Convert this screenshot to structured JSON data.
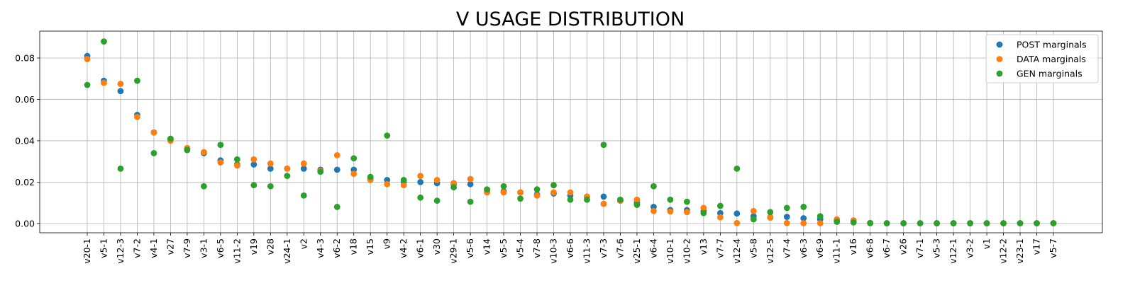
{
  "chart_data": {
    "type": "scatter",
    "title": "V USAGE DISTRIBUTION",
    "xlabel": "",
    "ylabel": "",
    "ylim": [
      -0.0045,
      0.093
    ],
    "yticks": [
      "0.00",
      "0.02",
      "0.04",
      "0.06",
      "0.08"
    ],
    "grid": true,
    "legend_position": "top-right",
    "categories": [
      "v20-1",
      "v5-1",
      "v12-3",
      "v7-2",
      "v4-1",
      "v27",
      "v7-9",
      "v3-1",
      "v6-5",
      "v11-2",
      "v19",
      "v28",
      "v24-1",
      "v2",
      "v4-3",
      "v6-2",
      "v18",
      "v15",
      "v9",
      "v4-2",
      "v6-1",
      "v30",
      "v29-1",
      "v5-6",
      "v14",
      "v5-5",
      "v5-4",
      "v7-8",
      "v10-3",
      "v6-6",
      "v11-3",
      "v7-3",
      "v7-6",
      "v25-1",
      "v6-4",
      "v10-1",
      "v10-2",
      "v13",
      "v7-7",
      "v12-4",
      "v5-8",
      "v12-5",
      "v7-4",
      "v6-3",
      "v6-9",
      "v11-1",
      "v16",
      "v6-8",
      "v6-7",
      "v26",
      "v7-1",
      "v5-3",
      "v12-1",
      "v3-2",
      "v1",
      "v12-2",
      "v23-1",
      "v17",
      "v5-7"
    ],
    "series": [
      {
        "name": "POST marginals",
        "color": "#1f77b4",
        "values": [
          0.081,
          0.069,
          0.064,
          0.0525,
          0.044,
          0.0405,
          0.036,
          0.034,
          0.0305,
          0.0285,
          0.0285,
          0.0265,
          0.0265,
          0.0265,
          0.026,
          0.026,
          0.026,
          0.0215,
          0.021,
          0.02,
          0.02,
          0.0195,
          0.019,
          0.019,
          0.016,
          0.0155,
          0.015,
          0.014,
          0.0145,
          0.0135,
          0.013,
          0.013,
          0.011,
          0.01,
          0.008,
          0.0065,
          0.0065,
          0.006,
          0.005,
          0.0048,
          0.0035,
          0.003,
          0.0032,
          0.0025,
          0.002,
          0.0015,
          0.0008,
          0.0002,
          0.0001,
          0.0001,
          0.0001,
          0.0001,
          0.0001,
          0.0001,
          0.0001,
          0.0001,
          0.0001,
          0.0001,
          0.0001
        ]
      },
      {
        "name": "DATA marginals",
        "color": "#ff7f0e",
        "values": [
          0.0795,
          0.068,
          0.0675,
          0.0515,
          0.044,
          0.04,
          0.0365,
          0.0345,
          0.0295,
          0.028,
          0.031,
          0.029,
          0.0265,
          0.029,
          0.0255,
          0.033,
          0.024,
          0.021,
          0.019,
          0.0185,
          0.023,
          0.021,
          0.0195,
          0.0215,
          0.015,
          0.015,
          0.015,
          0.0135,
          0.015,
          0.015,
          0.013,
          0.0095,
          0.011,
          0.0115,
          0.006,
          0.0058,
          0.0055,
          0.0075,
          0.003,
          0.0002,
          0.006,
          0.0028,
          0.0002,
          0.0001,
          0.0001,
          0.002,
          0.0015,
          0.0001,
          0.0001,
          0.0001,
          0.0001,
          0.0001,
          0.0001,
          0.0001,
          0.0001,
          0.0001,
          0.0001,
          0.0001,
          0.0001
        ]
      },
      {
        "name": "GEN marginals",
        "color": "#2ca02c",
        "values": [
          0.067,
          0.088,
          0.0265,
          0.069,
          0.034,
          0.041,
          0.0355,
          0.018,
          0.038,
          0.031,
          0.0185,
          0.018,
          0.023,
          0.0135,
          0.025,
          0.008,
          0.0315,
          0.0225,
          0.0425,
          0.021,
          0.0125,
          0.011,
          0.0175,
          0.0105,
          0.0165,
          0.018,
          0.012,
          0.0165,
          0.0185,
          0.0115,
          0.0115,
          0.038,
          0.0115,
          0.009,
          0.018,
          0.0115,
          0.0105,
          0.005,
          0.0085,
          0.0265,
          0.002,
          0.0055,
          0.0075,
          0.008,
          0.0035,
          0.0008,
          0.0005,
          0.0002,
          0.0001,
          0.0001,
          0.0001,
          0.0001,
          0.0001,
          0.0001,
          0.0001,
          0.0001,
          0.0001,
          0.0001,
          0.0001
        ]
      }
    ]
  }
}
